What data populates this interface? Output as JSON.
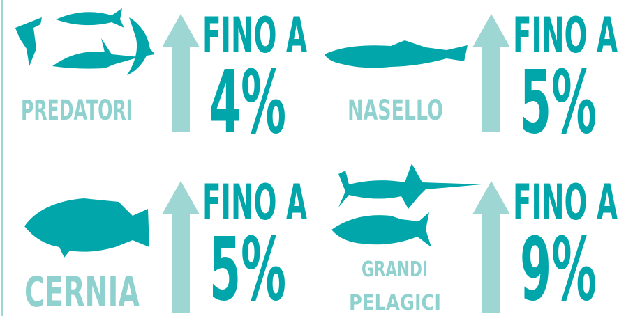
{
  "panels": [
    {
      "label_lines": [
        "PREDATORI"
      ],
      "prefix": "FINO A",
      "value": "4%"
    },
    {
      "label_lines": [
        "NASELLO"
      ],
      "prefix": "FINO A",
      "value": "5%"
    },
    {
      "label_lines": [
        "CERNIA"
      ],
      "prefix": "FINO A",
      "value": "5%"
    },
    {
      "label_lines": [
        "GRANDI",
        "PELAGICI"
      ],
      "prefix": "FINO A",
      "value": "9%"
    }
  ]
}
